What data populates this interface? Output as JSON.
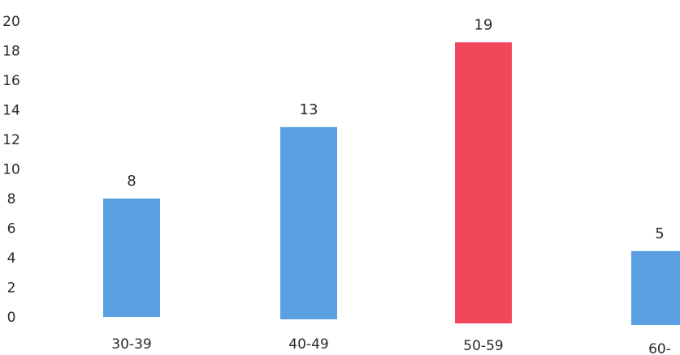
{
  "chart_data": {
    "type": "bar",
    "categories": [
      "30-39",
      "40-49",
      "50-59",
      "60-"
    ],
    "values": [
      8,
      13,
      19,
      5
    ],
    "data_labels": [
      "8",
      "13",
      "19",
      "5"
    ],
    "ylim": [
      0,
      20
    ],
    "yticks": [
      "0",
      "2",
      "4",
      "6",
      "8",
      "10",
      "12",
      "14",
      "16",
      "18",
      "20"
    ],
    "grid": false,
    "legend": "none",
    "colors": [
      "#5a9fe0",
      "#5a9fe0",
      "#f0475a",
      "#5a9fe0"
    ]
  }
}
